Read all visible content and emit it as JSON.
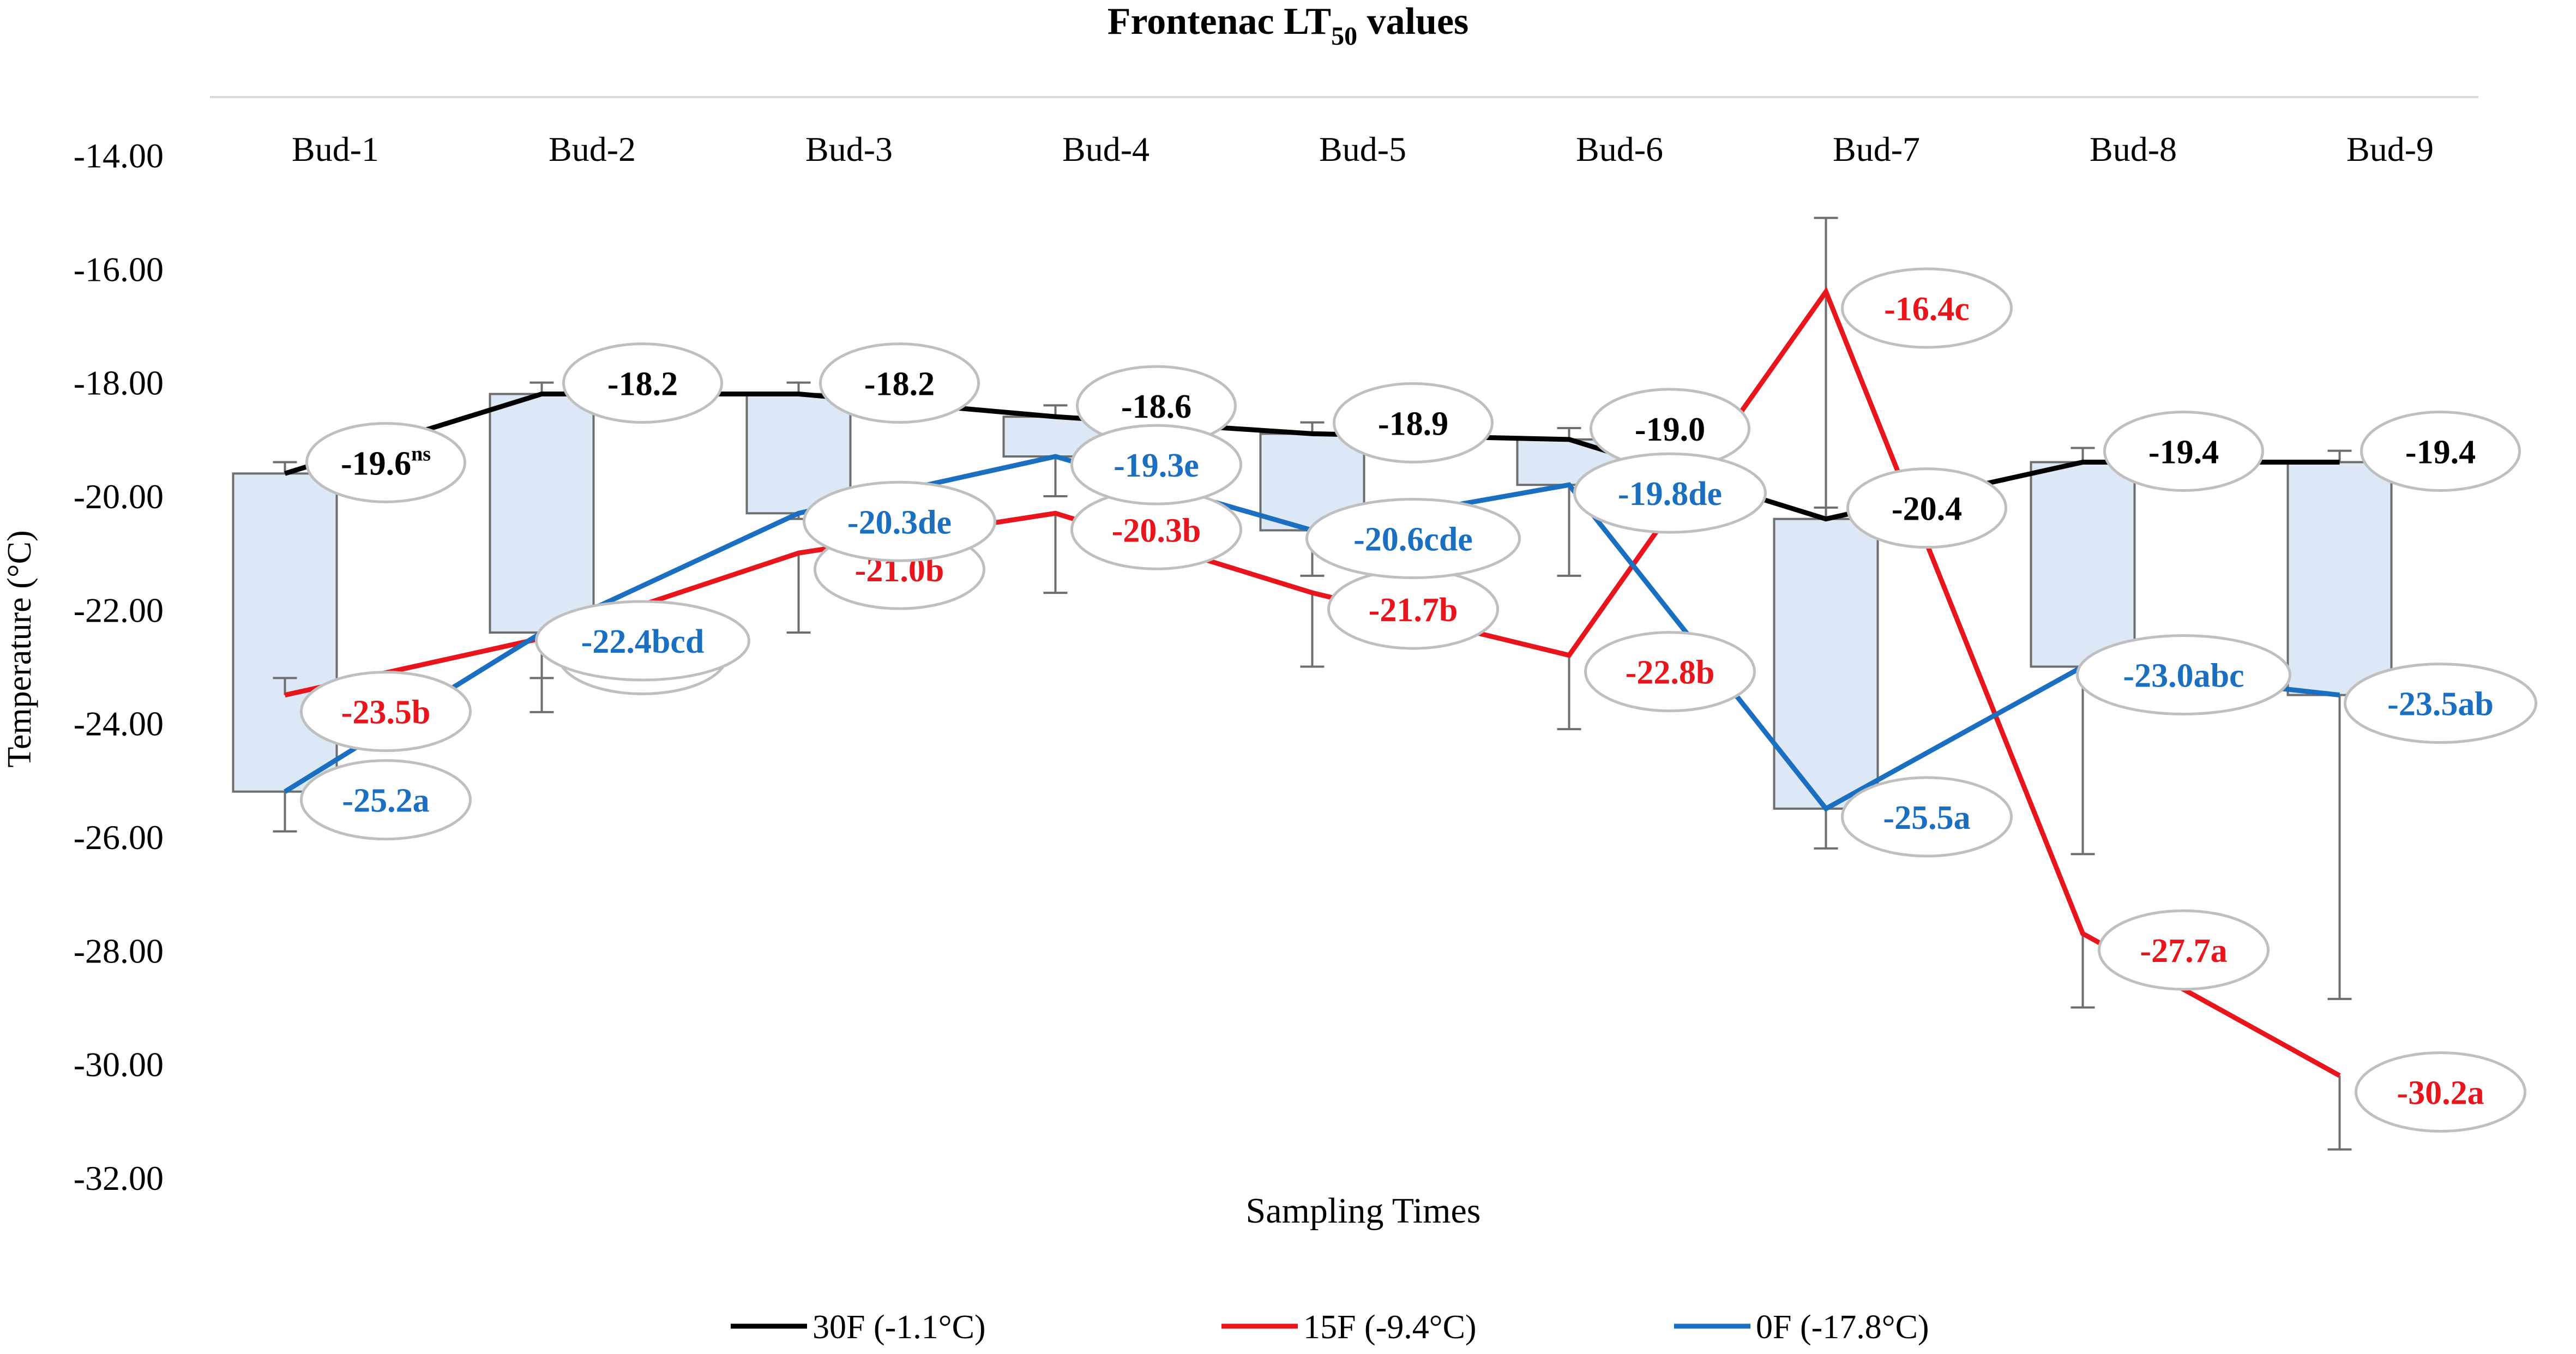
{
  "chart_data": {
    "type": "line",
    "title_main": "Frontenac LT",
    "title_sub": "50",
    "title_tail": " values",
    "xlabel": "Sampling Times",
    "ylabel": "Temperature (°C)",
    "ylim": [
      -32,
      -14
    ],
    "yticks": [
      "-14.00",
      "-16.00",
      "-18.00",
      "-20.00",
      "-22.00",
      "-24.00",
      "-26.00",
      "-28.00",
      "-30.00",
      "-32.00"
    ],
    "categories": [
      "Bud-1",
      "Bud-2",
      "Bud-3",
      "Bud-4",
      "Bud-5",
      "Bud-6",
      "Bud-7",
      "Bud-8",
      "Bud-9"
    ],
    "x_axis_position": "top",
    "grid": false,
    "legend_position": "bottom",
    "series": [
      {
        "name": "30F (-1.1°C)",
        "color": "#000000",
        "values": [
          -19.6,
          -18.2,
          -18.2,
          -18.6,
          -18.9,
          -19.0,
          -20.4,
          -19.4,
          -19.4
        ],
        "labels": [
          "-19.6",
          "-18.2",
          "-18.2",
          "-18.6",
          "-18.9",
          "-19.0",
          "-20.4",
          "-19.4",
          "-19.4"
        ],
        "label_sup": [
          "ns",
          "",
          "",
          "",
          "",
          "",
          "",
          "",
          ""
        ],
        "error_low": [
          -19.4,
          -18.0,
          -18.0,
          -18.4,
          -18.7,
          -18.8,
          -17.8,
          -19.15,
          -19.2
        ],
        "error_high": [
          -19.4,
          -18.0,
          -18.0,
          -18.4,
          -18.7,
          -18.8,
          -15.1,
          -19.15,
          -19.2
        ]
      },
      {
        "name": "15F (-9.4°C)",
        "color": "#e8161c",
        "values": [
          -23.5,
          -22.5,
          -21.0,
          -20.3,
          -21.7,
          -22.8,
          -16.4,
          -27.7,
          -30.2
        ],
        "labels": [
          "-23.5b",
          "-22.5b",
          "-21.0b",
          "-20.3b",
          "-21.7b",
          "-22.8b",
          "-16.4c",
          "-27.7a",
          "-30.2a"
        ],
        "error_low": [
          -23.2,
          -23.2,
          -22.4,
          -21.7,
          -23.0,
          -24.1,
          -20.2,
          -29.0,
          -31.5
        ],
        "error_high": [
          -23.2,
          -23.2,
          -22.4,
          -21.7,
          -23.0,
          -24.1,
          -20.2,
          -29.0,
          -31.5
        ]
      },
      {
        "name": "0F (-17.8°C)",
        "color": "#1a6fc0",
        "values": [
          -25.2,
          -22.4,
          -20.3,
          -19.3,
          -20.6,
          -19.8,
          -25.5,
          -23.0,
          -23.5
        ],
        "labels": [
          "-25.2a",
          "-22.4bcd",
          "-20.3de",
          "-19.3e",
          "-20.6cde",
          "-19.8de",
          "-25.5a",
          "-23.0abc",
          "-23.5ab"
        ],
        "error_low": [
          -25.9,
          -23.8,
          -20.4,
          -20.0,
          -21.4,
          -21.4,
          -26.2,
          -26.3,
          -28.85
        ],
        "error_high": [
          -25.9,
          -23.8,
          -20.4,
          -20.0,
          -21.4,
          -21.4,
          -26.2,
          -26.3,
          -28.85
        ]
      }
    ]
  }
}
